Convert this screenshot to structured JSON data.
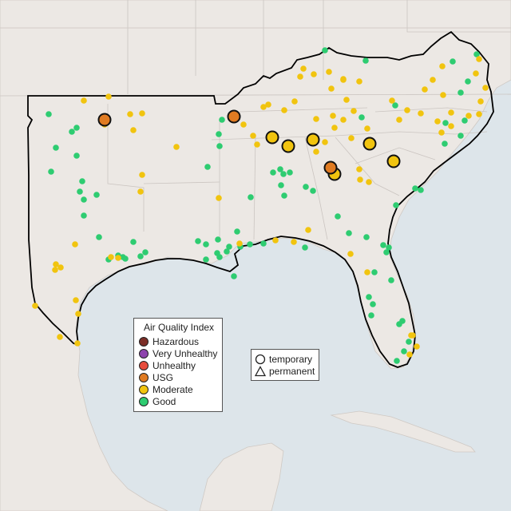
{
  "legend": {
    "title": "Air Quality Index",
    "items": [
      {
        "label": "Hazardous",
        "color": "#7b2d26"
      },
      {
        "label": "Very Unhealthy",
        "color": "#8e44ad"
      },
      {
        "label": "Unhealthy",
        "color": "#e74c3c"
      },
      {
        "label": "USG",
        "color": "#e07b22"
      },
      {
        "label": "Moderate",
        "color": "#f1c40f"
      },
      {
        "label": "Good",
        "color": "#2ecc71"
      }
    ]
  },
  "monitor_types": [
    {
      "label": "temporary",
      "shape": "circle"
    },
    {
      "label": "permanent",
      "shape": "triangle"
    }
  ],
  "colors": {
    "water": "#dde5ea",
    "land": "#ede8e4",
    "region_border": "#000000",
    "state_border": "#c8c2be",
    "good": "#2ecc71",
    "moderate": "#f1c40f",
    "usg": "#e07b22"
  }
}
